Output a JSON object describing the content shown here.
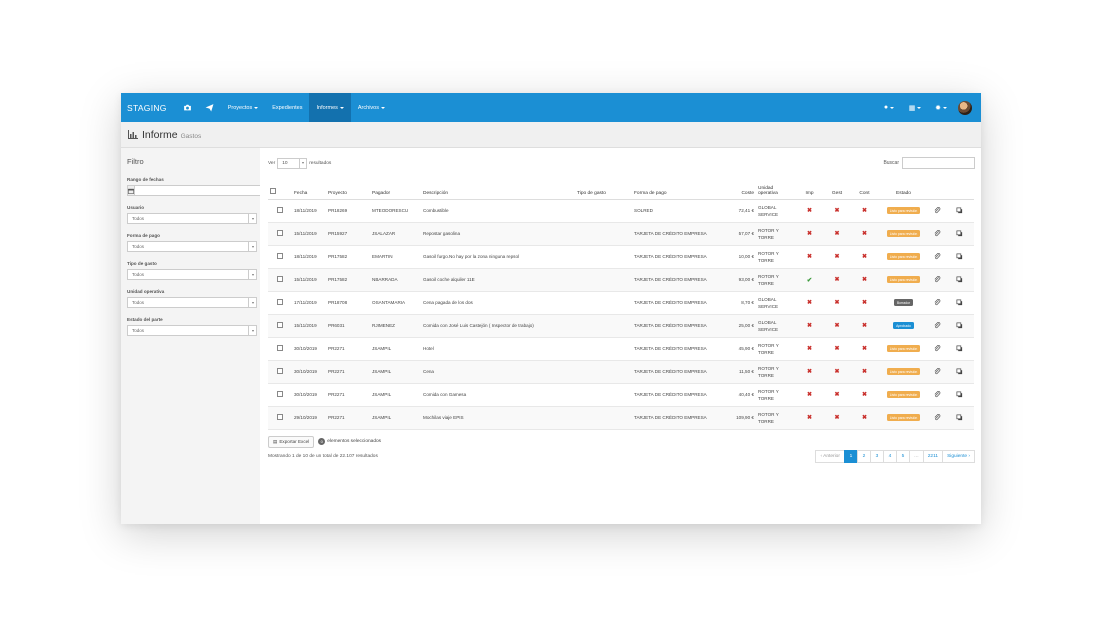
{
  "navbar": {
    "brand": "STAGING",
    "icons": [
      "camera-icon",
      "paper-plane-icon"
    ],
    "items": [
      {
        "label": "Proyectos",
        "dropdown": true,
        "active": false
      },
      {
        "label": "Expedientes",
        "dropdown": false,
        "active": false
      },
      {
        "label": "Informes",
        "dropdown": true,
        "active": true
      },
      {
        "label": "Archivos",
        "dropdown": true,
        "active": false
      }
    ],
    "right_icons": [
      "help-icon",
      "language-icon",
      "settings-icon"
    ],
    "accent": "#1b8fd4"
  },
  "page": {
    "title": "Informe",
    "subtitle": "Gastos"
  },
  "filter": {
    "title": "Filtro",
    "date_range_label": "Rango de fechas",
    "fields": [
      {
        "label": "Usuario",
        "value": "Todos"
      },
      {
        "label": "Forma de pago",
        "value": "Todos"
      },
      {
        "label": "Tipo de gasto",
        "value": "Todos"
      },
      {
        "label": "Unidad operativa",
        "value": "Todos"
      },
      {
        "label": "Estado del parte",
        "value": "Todos"
      }
    ]
  },
  "table_controls": {
    "show_prefix": "Ver",
    "page_size": "10",
    "show_suffix": "resultados",
    "search_label": "Buscar"
  },
  "columns": [
    "Fecha",
    "Proyecto",
    "Pagador",
    "Descripción",
    "Tipo de gasto",
    "Forma de pago",
    "Coste",
    "Unidad operativa",
    "Imp",
    "Gest",
    "Cont",
    "Estado"
  ],
  "rows": [
    {
      "fecha": "18/11/2019",
      "proyecto": "PR18269",
      "pagador": "MTEODORESCU",
      "descripcion": "Combustible",
      "tipo": "",
      "forma": "SOLRED",
      "coste": "72,41 €",
      "unidad": "GLOBAL SERVICE",
      "imp": "x",
      "gest": "x",
      "cont": "x",
      "estado": "Listo para revisión",
      "estado_color": "#f0ad4e"
    },
    {
      "fecha": "15/11/2019",
      "proyecto": "PR15927",
      "pagador": "JSALAZAR",
      "descripcion": "Repostar gasolina",
      "tipo": "",
      "forma": "TARJETA DE CRÉDITO EMPRESA",
      "coste": "57,07 €",
      "unidad": "ROTOR Y TORRE",
      "imp": "x",
      "gest": "x",
      "cont": "x",
      "estado": "Listo para revisión",
      "estado_color": "#f0ad4e"
    },
    {
      "fecha": "18/11/2019",
      "proyecto": "PR17582",
      "pagador": "EMARTIN",
      "descripcion": "Gasoil furgo.No hay por la zona ninguna repsol",
      "tipo": "",
      "forma": "TARJETA DE CRÉDITO EMPRESA",
      "coste": "10,00 €",
      "unidad": "ROTOR Y TORRE",
      "imp": "x",
      "gest": "x",
      "cont": "x",
      "estado": "Listo para revisión",
      "estado_color": "#f0ad4e"
    },
    {
      "fecha": "15/11/2019",
      "proyecto": "PR17582",
      "pagador": "NBARRADA",
      "descripcion": "Gasoil coche alquiler 11E",
      "tipo": "",
      "forma": "TARJETA DE CRÉDITO EMPRESA",
      "coste": "93,00 €",
      "unidad": "ROTOR Y TORRE",
      "imp": "ok",
      "gest": "x",
      "cont": "x",
      "estado": "Listo para revisión",
      "estado_color": "#f0ad4e"
    },
    {
      "fecha": "17/11/2019",
      "proyecto": "PR18708",
      "pagador": "OSANTAMARIA",
      "descripcion": "Cena pagada de los dos",
      "tipo": "",
      "forma": "TARJETA DE CRÉDITO EMPRESA",
      "coste": "8,70 €",
      "unidad": "GLOBAL SERVICE",
      "imp": "x",
      "gest": "x",
      "cont": "x",
      "estado": "Borrador",
      "estado_color": "#666666"
    },
    {
      "fecha": "15/11/2019",
      "proyecto": "PR6031",
      "pagador": "RJIMENEZ",
      "descripcion": "Comida con José Luis Castejón ( Inspector de trabajo)",
      "tipo": "",
      "forma": "TARJETA DE CRÉDITO EMPRESA",
      "coste": "25,00 €",
      "unidad": "GLOBAL SERVICE",
      "imp": "x",
      "gest": "x",
      "cont": "x",
      "estado": "Aprobado",
      "estado_color": "#1b8fd4"
    },
    {
      "fecha": "30/10/2019",
      "proyecto": "PR2271",
      "pagador": "JSAMPIL",
      "descripcion": "Hotel",
      "tipo": "",
      "forma": "TARJETA DE CRÉDITO EMPRESA",
      "coste": "45,90 €",
      "unidad": "ROTOR Y TORRE",
      "imp": "x",
      "gest": "x",
      "cont": "x",
      "estado": "Listo para revisión",
      "estado_color": "#f0ad4e"
    },
    {
      "fecha": "30/10/2019",
      "proyecto": "PR2271",
      "pagador": "JSAMPIL",
      "descripcion": "Cena",
      "tipo": "",
      "forma": "TARJETA DE CRÉDITO EMPRESA",
      "coste": "11,50 €",
      "unidad": "ROTOR Y TORRE",
      "imp": "x",
      "gest": "x",
      "cont": "x",
      "estado": "Listo para revisión",
      "estado_color": "#f0ad4e"
    },
    {
      "fecha": "30/10/2019",
      "proyecto": "PR2271",
      "pagador": "JSAMPIL",
      "descripcion": "Comida con Gamesa",
      "tipo": "",
      "forma": "TARJETA DE CRÉDITO EMPRESA",
      "coste": "40,40 €",
      "unidad": "ROTOR Y TORRE",
      "imp": "x",
      "gest": "x",
      "cont": "x",
      "estado": "Listo para revisión",
      "estado_color": "#f0ad4e"
    },
    {
      "fecha": "29/10/2019",
      "proyecto": "PR2271",
      "pagador": "JSAMPIL",
      "descripcion": "Mochilas viaje EPIS",
      "tipo": "",
      "forma": "TARJETA DE CRÉDITO EMPRESA",
      "coste": "109,90 €",
      "unidad": "ROTOR Y TORRE",
      "imp": "x",
      "gest": "x",
      "cont": "x",
      "estado": "Listo para revisión",
      "estado_color": "#f0ad4e"
    }
  ],
  "actions": {
    "export_label": "Exportar Excel",
    "selected_count": "0",
    "selected_label": "elementos seleccionados"
  },
  "footer": {
    "info": "Mostrando 1 de 10 de un total de 22.107 resultados",
    "prev": "‹ Anterior",
    "pages": [
      "1",
      "2",
      "3",
      "4",
      "5",
      "…",
      "2211"
    ],
    "active_page": "1",
    "next": "Siguiente ›"
  }
}
